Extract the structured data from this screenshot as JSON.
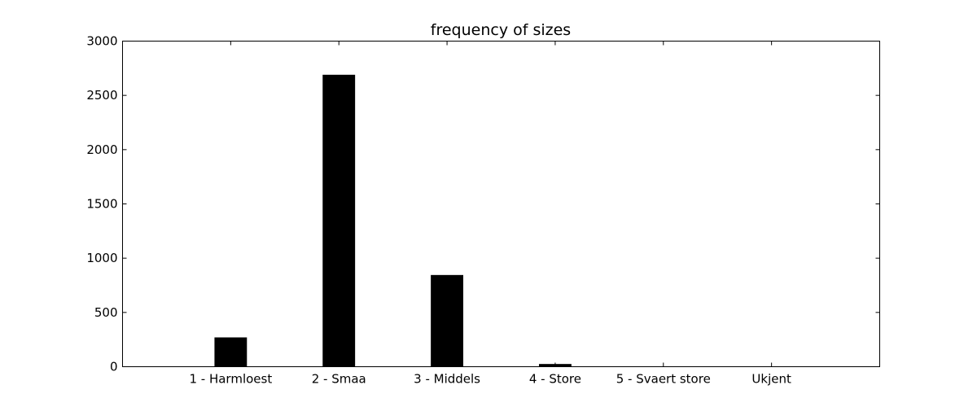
{
  "chart_data": {
    "type": "bar",
    "title": "frequency of sizes",
    "xlabel": "",
    "ylabel": "",
    "categories": [
      "1 - Harmloest",
      "2 - Smaa",
      "3 - Middels",
      "4 - Store",
      "5 - Svaert store",
      "Ukjent"
    ],
    "values": [
      270,
      2690,
      845,
      25,
      0,
      0
    ],
    "ylim": [
      0,
      3000
    ],
    "yticks": [
      "0",
      "500",
      "1000",
      "1500",
      "2000",
      "2500",
      "3000"
    ],
    "bar_color": "#000000",
    "grid": false,
    "legend": "none"
  }
}
